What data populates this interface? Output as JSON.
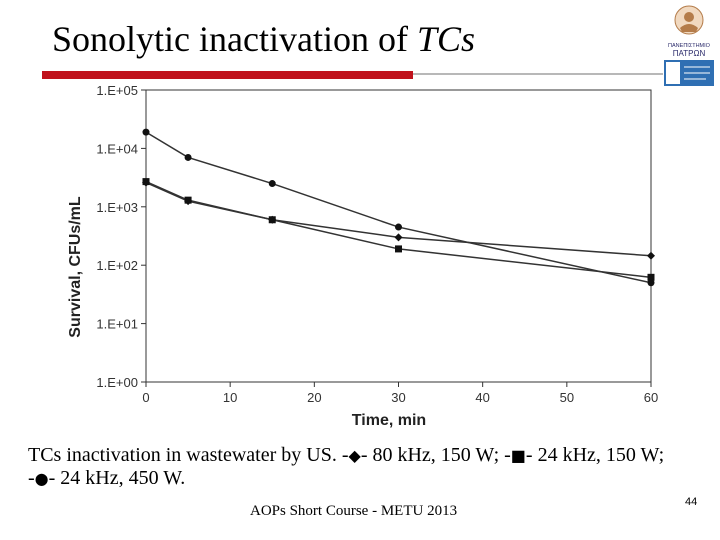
{
  "slide": {
    "title_main": "Sonolytic inactivation of ",
    "title_italic": "TCs",
    "caption_prefix": "TCs inactivation in wastewater by US. -",
    "caption_s1": "- 80 kHz, 150 W; -",
    "caption_s2": "- 24 kHz, 150 W; -",
    "caption_s3": "- 24 kHz, 450 W.",
    "symbols": [
      "diamond-marker-icon",
      "square-marker-icon",
      "circle-marker-icon"
    ],
    "footer": "AOPs Short Course - METU 2013",
    "page_number": "44",
    "accent_color": "#c0121c",
    "logo_text_1": "ΠΑΝΕΠΙΣΤΗΜΙΟ",
    "logo_text_2": "ΠΑΤΡΩΝ"
  },
  "chart_data": {
    "type": "line",
    "xlabel": "Time, min",
    "ylabel": "Survival, CFUs/mL",
    "xlim": [
      0,
      60
    ],
    "ylim": [
      1,
      100000
    ],
    "y_scale": "log",
    "x_ticks": [
      0,
      10,
      20,
      30,
      40,
      50,
      60
    ],
    "x_tick_labels": [
      "0",
      "10",
      "20",
      "30",
      "40",
      "50",
      "60"
    ],
    "y_ticks": [
      1,
      10,
      100,
      1000,
      10000,
      100000
    ],
    "y_tick_labels": [
      "1.E+00",
      "1.E+01",
      "1.E+02",
      "1.E+03",
      "1.E+04",
      "1.E+05"
    ],
    "grid": false,
    "series": [
      {
        "marker": "diamond",
        "x": [
          0,
          5,
          15,
          30,
          60
        ],
        "values": [
          2600,
          1250,
          600,
          300,
          145
        ]
      },
      {
        "marker": "square",
        "x": [
          0,
          5,
          15,
          30,
          60
        ],
        "values": [
          2700,
          1300,
          600,
          190,
          62
        ]
      },
      {
        "marker": "circle",
        "x": [
          0,
          5,
          15,
          30,
          60
        ],
        "values": [
          19000,
          7000,
          2500,
          450,
          50
        ]
      }
    ]
  }
}
